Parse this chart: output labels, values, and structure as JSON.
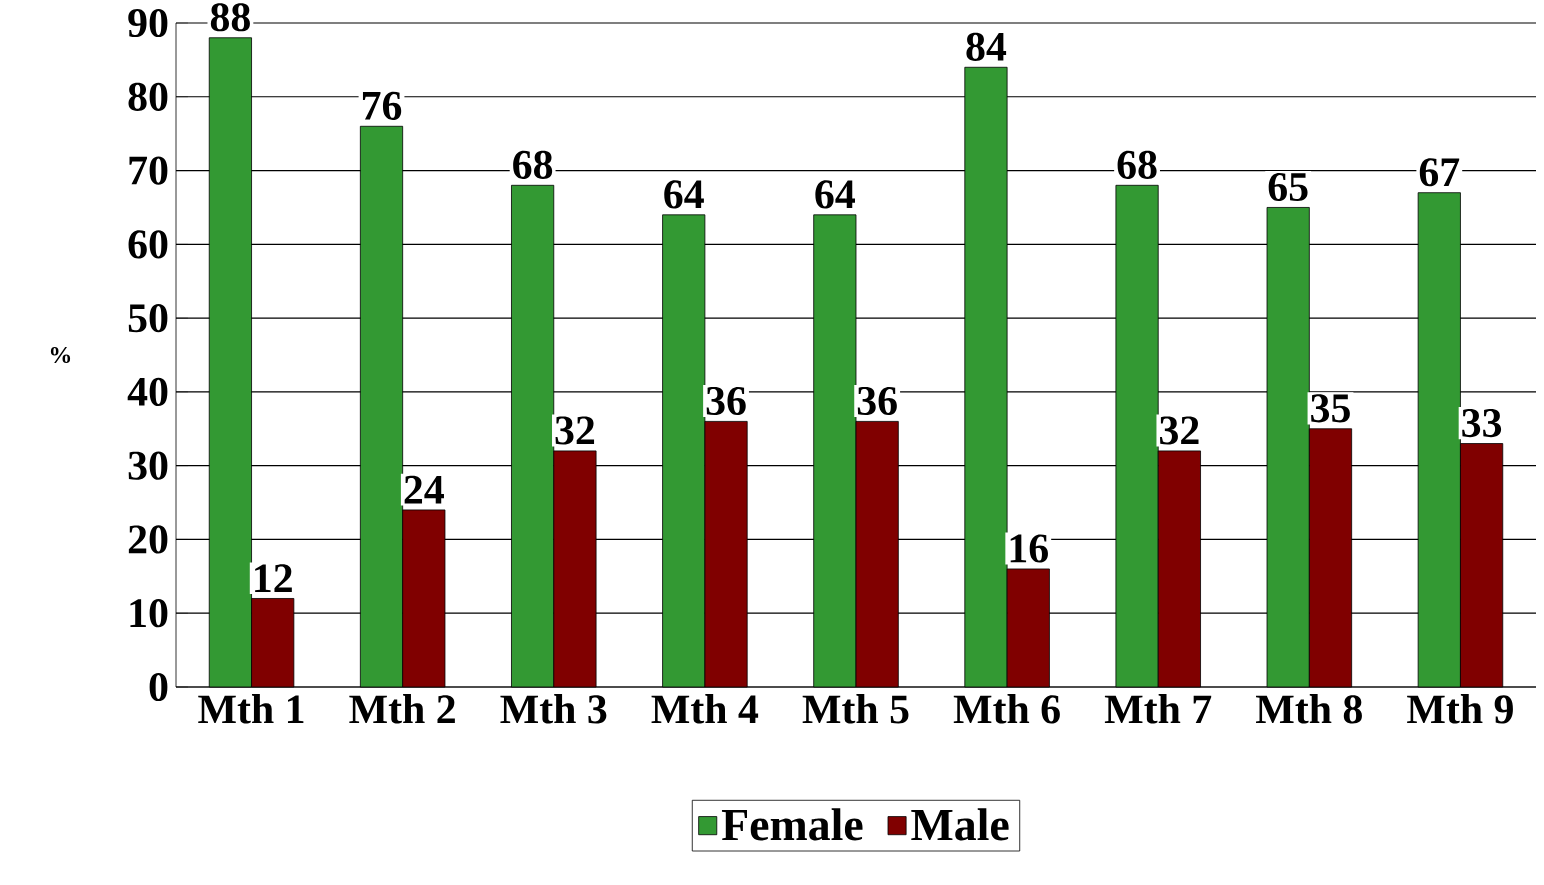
{
  "chart_data": {
    "type": "bar",
    "ylabel": "%",
    "categories": [
      "Mth 1",
      "Mth 2",
      "Mth 3",
      "Mth 4",
      "Mth 5",
      "Mth 6",
      "Mth 7",
      "Mth 8",
      "Mth 9"
    ],
    "series": [
      {
        "name": "Female",
        "color": "#339933",
        "values": [
          88,
          76,
          68,
          64,
          64,
          84,
          68,
          65,
          67
        ]
      },
      {
        "name": "Male",
        "color": "#800000",
        "values": [
          12,
          24,
          32,
          36,
          36,
          16,
          32,
          35,
          33
        ]
      }
    ],
    "ylim": [
      0,
      90
    ],
    "yticks": [
      0,
      10,
      20,
      30,
      40,
      50,
      60,
      70,
      80,
      90
    ],
    "grid": "y",
    "legend": "bottom",
    "data_labels": true
  }
}
